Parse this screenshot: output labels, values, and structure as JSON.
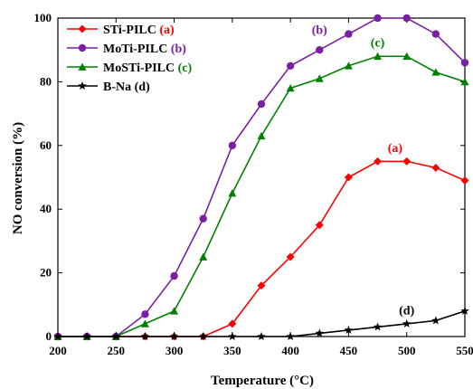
{
  "chart_data": {
    "type": "line",
    "xlabel": "Temperature (°C)",
    "ylabel": "NO conversion (%)",
    "xlim": [
      200,
      550
    ],
    "ylim": [
      0,
      100
    ],
    "x_ticks": [
      200,
      250,
      300,
      350,
      400,
      450,
      500,
      550
    ],
    "y_ticks": [
      0,
      20,
      40,
      60,
      80,
      100
    ],
    "grid": false,
    "legend_position": "top-left",
    "series": [
      {
        "name": "STi-PILC",
        "tag": "(a)",
        "color": "#ff0000",
        "marker": "diamond",
        "x": [
          200,
          225,
          250,
          275,
          300,
          325,
          350,
          375,
          400,
          425,
          450,
          475,
          500,
          525,
          550
        ],
        "y": [
          0,
          0,
          0,
          0,
          0,
          0,
          4,
          16,
          25,
          35,
          50,
          55,
          55,
          53,
          49
        ]
      },
      {
        "name": "MoTi-PILC",
        "tag": "(b)",
        "color": "#7b1fa2",
        "marker": "circle",
        "x": [
          200,
          225,
          250,
          275,
          300,
          325,
          350,
          375,
          400,
          425,
          450,
          475,
          500,
          525,
          550
        ],
        "y": [
          0,
          0,
          0,
          7,
          19,
          37,
          60,
          73,
          85,
          90,
          95,
          100,
          100,
          95,
          86
        ]
      },
      {
        "name": "MoSTi-PILC",
        "tag": "(c)",
        "color": "#008000",
        "marker": "triangle",
        "x": [
          200,
          225,
          250,
          275,
          300,
          325,
          350,
          375,
          400,
          425,
          450,
          475,
          500,
          525,
          550
        ],
        "y": [
          0,
          0,
          0,
          4,
          8,
          25,
          45,
          63,
          78,
          81,
          85,
          88,
          88,
          83,
          80
        ]
      },
      {
        "name": "B-Na",
        "tag": "(d)",
        "color": "#000000",
        "marker": "star",
        "x": [
          200,
          225,
          250,
          275,
          300,
          325,
          350,
          375,
          400,
          425,
          450,
          475,
          500,
          525,
          550
        ],
        "y": [
          0,
          0,
          0,
          0,
          0,
          0,
          0,
          0,
          0,
          1,
          2,
          3,
          4,
          5,
          8
        ]
      }
    ],
    "annotations": [
      {
        "text": "(a)",
        "x": 490,
        "y": 58,
        "color": "#ff0000"
      },
      {
        "text": "(b)",
        "x": 425,
        "y": 95,
        "color": "#7b1fa2"
      },
      {
        "text": "(c)",
        "x": 475,
        "y": 91,
        "color": "#008000"
      },
      {
        "text": "(d)",
        "x": 500,
        "y": 7,
        "color": "#000000"
      }
    ]
  }
}
